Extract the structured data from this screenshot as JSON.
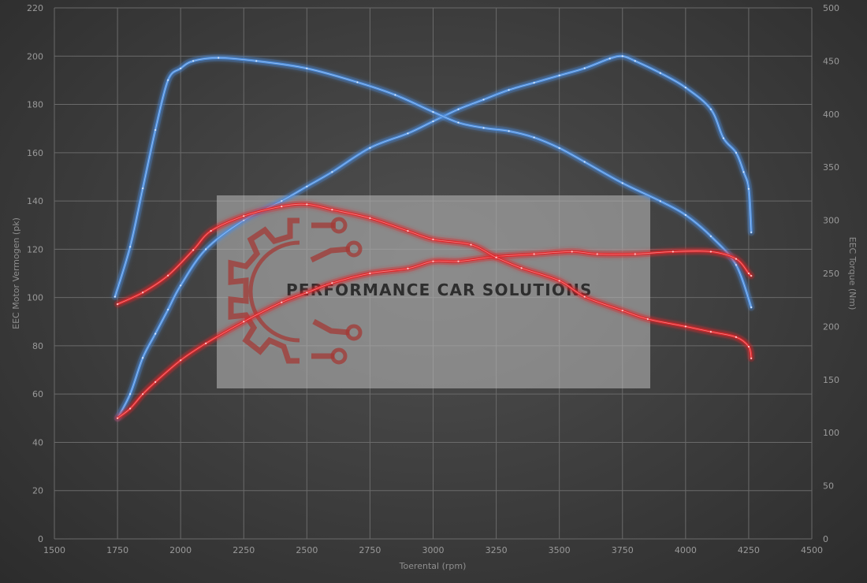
{
  "chart_data": {
    "type": "line",
    "x_label": "Toerental (rpm)",
    "y_left_label": "EEC Motor Vermogen (pk)",
    "y_right_label": "EEC Torque (Nm)",
    "xlim": [
      1500,
      4500
    ],
    "ylim_left": [
      0,
      220
    ],
    "ylim_right": [
      0,
      500
    ],
    "x_ticks": [
      "1500",
      "1750",
      "2000",
      "2250",
      "2500",
      "2750",
      "3000",
      "3250",
      "3500",
      "3750",
      "4000",
      "4250",
      "4500"
    ],
    "y_left_ticks": [
      "0",
      "20",
      "40",
      "60",
      "80",
      "100",
      "120",
      "140",
      "160",
      "180",
      "200",
      "220"
    ],
    "y_right_ticks": [
      "0",
      "50",
      "100",
      "150",
      "200",
      "250",
      "300",
      "350",
      "400",
      "450",
      "500"
    ],
    "grid": true,
    "watermark": "PERFORMANCE CAR SOLUTIONS",
    "colors": {
      "tuned": "#4d8fe0",
      "stock": "#e0262a"
    },
    "series": [
      {
        "variant": "tuned",
        "kind": "power",
        "axis": "left",
        "points": [
          [
            1750,
            50
          ],
          [
            1800,
            60
          ],
          [
            1850,
            75
          ],
          [
            1900,
            85
          ],
          [
            1950,
            95
          ],
          [
            2000,
            105
          ],
          [
            2100,
            120
          ],
          [
            2250,
            132
          ],
          [
            2400,
            140
          ],
          [
            2500,
            146
          ],
          [
            2600,
            152
          ],
          [
            2750,
            162
          ],
          [
            2900,
            168
          ],
          [
            3000,
            173
          ],
          [
            3100,
            178
          ],
          [
            3200,
            182
          ],
          [
            3300,
            186
          ],
          [
            3400,
            189
          ],
          [
            3500,
            192
          ],
          [
            3600,
            195
          ],
          [
            3700,
            199
          ],
          [
            3750,
            200
          ],
          [
            3800,
            198
          ],
          [
            3900,
            193
          ],
          [
            4000,
            187
          ],
          [
            4100,
            178
          ],
          [
            4150,
            166
          ],
          [
            4200,
            160
          ],
          [
            4230,
            152
          ],
          [
            4250,
            145
          ],
          [
            4260,
            127
          ]
        ]
      },
      {
        "variant": "tuned",
        "kind": "torque",
        "axis": "right",
        "points": [
          [
            1740,
            228
          ],
          [
            1800,
            275
          ],
          [
            1850,
            330
          ],
          [
            1900,
            385
          ],
          [
            1950,
            432
          ],
          [
            2000,
            443
          ],
          [
            2050,
            450
          ],
          [
            2150,
            453
          ],
          [
            2300,
            450
          ],
          [
            2500,
            443
          ],
          [
            2700,
            430
          ],
          [
            2850,
            418
          ],
          [
            3000,
            402
          ],
          [
            3100,
            392
          ],
          [
            3200,
            387
          ],
          [
            3300,
            384
          ],
          [
            3400,
            378
          ],
          [
            3500,
            368
          ],
          [
            3600,
            355
          ],
          [
            3750,
            335
          ],
          [
            3900,
            318
          ],
          [
            4000,
            305
          ],
          [
            4100,
            285
          ],
          [
            4200,
            258
          ],
          [
            4260,
            218
          ]
        ]
      },
      {
        "variant": "stock",
        "kind": "power",
        "axis": "left",
        "points": [
          [
            1750,
            50
          ],
          [
            1800,
            54
          ],
          [
            1850,
            60
          ],
          [
            1900,
            65
          ],
          [
            2000,
            74
          ],
          [
            2100,
            81
          ],
          [
            2250,
            90
          ],
          [
            2400,
            98
          ],
          [
            2500,
            102
          ],
          [
            2600,
            106
          ],
          [
            2750,
            110
          ],
          [
            2900,
            112
          ],
          [
            3000,
            115
          ],
          [
            3100,
            115
          ],
          [
            3250,
            117
          ],
          [
            3400,
            118
          ],
          [
            3550,
            119
          ],
          [
            3650,
            118
          ],
          [
            3800,
            118
          ],
          [
            3950,
            119
          ],
          [
            4100,
            119
          ],
          [
            4200,
            116
          ],
          [
            4250,
            110
          ],
          [
            4260,
            109
          ]
        ]
      },
      {
        "variant": "stock",
        "kind": "torque",
        "axis": "right",
        "points": [
          [
            1750,
            221
          ],
          [
            1850,
            232
          ],
          [
            1950,
            248
          ],
          [
            2050,
            272
          ],
          [
            2120,
            290
          ],
          [
            2250,
            304
          ],
          [
            2400,
            313
          ],
          [
            2500,
            315
          ],
          [
            2600,
            310
          ],
          [
            2750,
            302
          ],
          [
            2900,
            290
          ],
          [
            3000,
            282
          ],
          [
            3150,
            277
          ],
          [
            3250,
            265
          ],
          [
            3350,
            255
          ],
          [
            3500,
            243
          ],
          [
            3600,
            228
          ],
          [
            3750,
            215
          ],
          [
            3850,
            207
          ],
          [
            4000,
            200
          ],
          [
            4100,
            195
          ],
          [
            4200,
            190
          ],
          [
            4250,
            181
          ],
          [
            4260,
            170
          ]
        ]
      }
    ]
  }
}
